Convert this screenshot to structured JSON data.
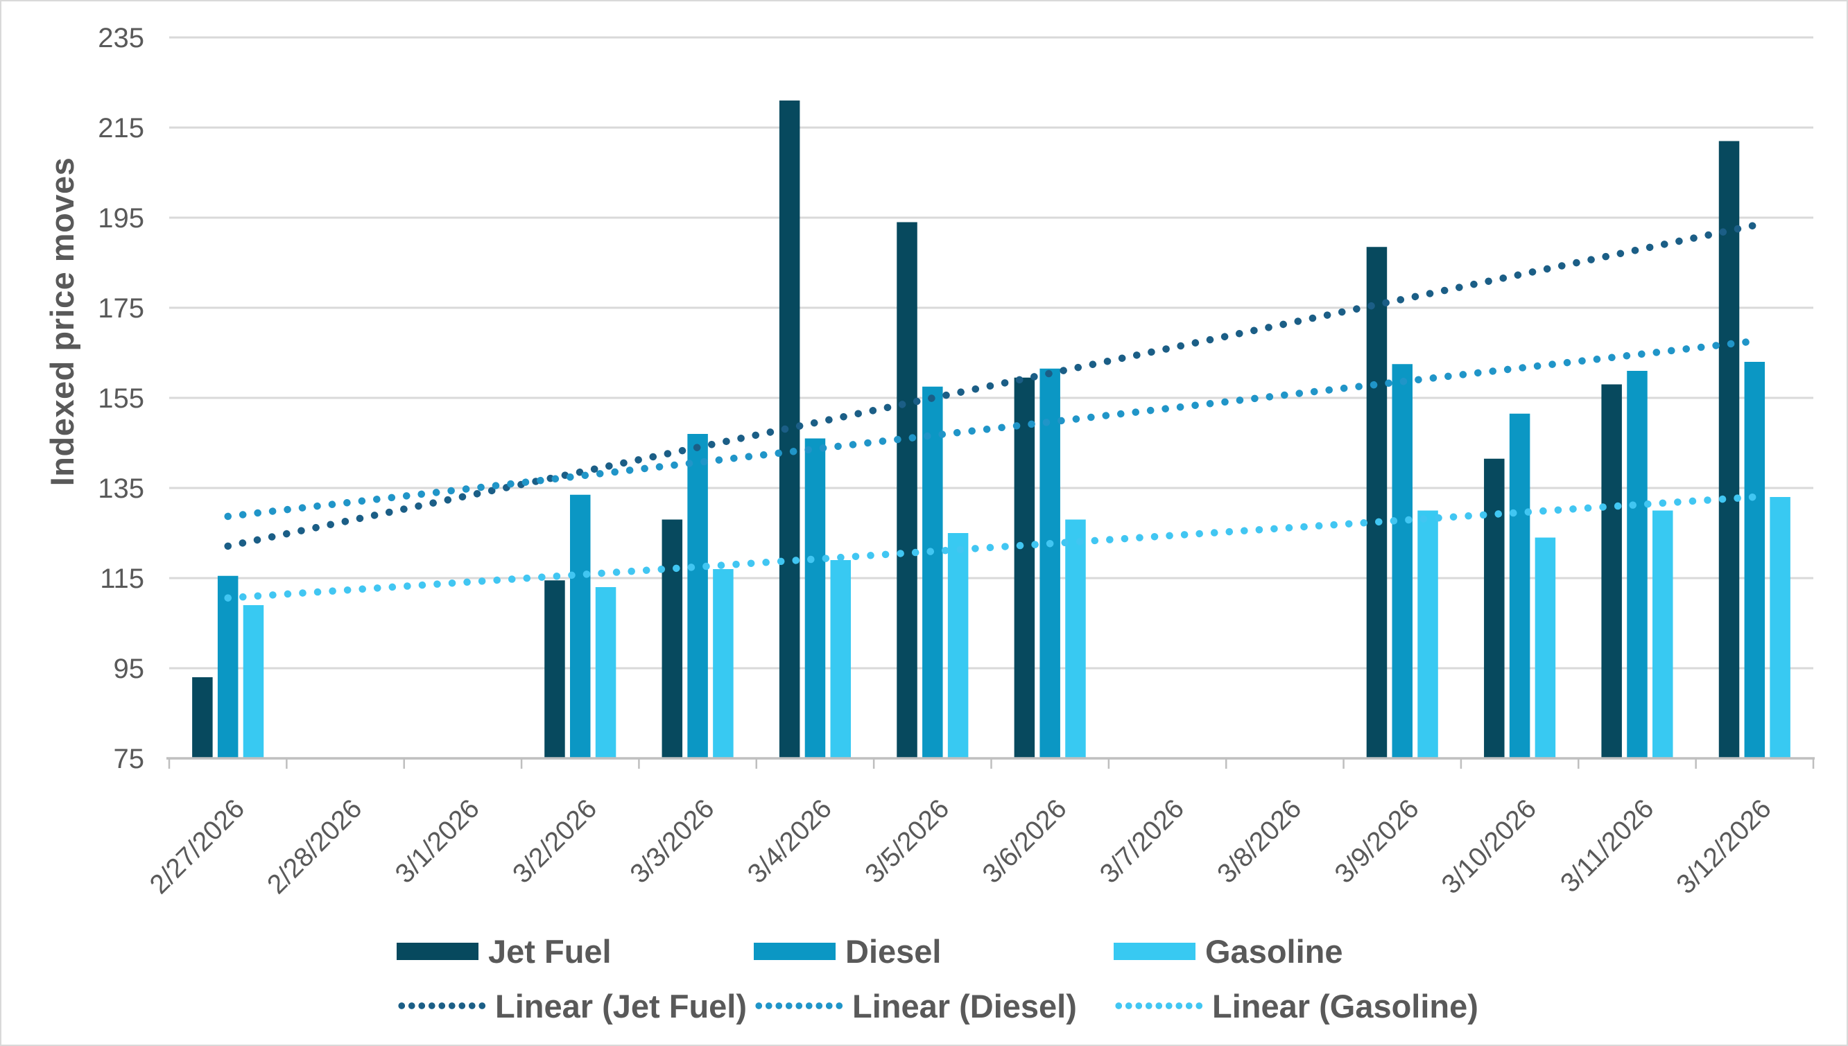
{
  "chart_data": {
    "type": "bar",
    "title": "",
    "ylabel": "Indexed price moves",
    "xlabel": "",
    "ylim": [
      75,
      235
    ],
    "ytick_step": 20,
    "ytick_labels": [
      "75",
      "95",
      "115",
      "135",
      "155",
      "175",
      "195",
      "215",
      "235"
    ],
    "grid": "horizontal",
    "legend_position": "bottom",
    "categories": [
      "2/27/2026",
      "2/28/2026",
      "3/1/2026",
      "3/2/2026",
      "3/3/2026",
      "3/4/2026",
      "3/5/2026",
      "3/6/2026",
      "3/7/2026",
      "3/8/2026",
      "3/9/2026",
      "3/10/2026",
      "3/11/2026",
      "3/12/2026"
    ],
    "series": [
      {
        "name": "Jet Fuel",
        "color": "#07495E",
        "values": [
          93,
          null,
          null,
          114.5,
          128,
          221,
          194,
          159.5,
          null,
          null,
          188.5,
          141.5,
          158,
          212
        ]
      },
      {
        "name": "Diesel",
        "color": "#0B97C4",
        "values": [
          115.5,
          null,
          null,
          133.5,
          147,
          146,
          157.5,
          161.5,
          null,
          null,
          162.5,
          151.5,
          161,
          163
        ]
      },
      {
        "name": "Gasoline",
        "color": "#38C9F2",
        "values": [
          109,
          null,
          null,
          113,
          117,
          119,
          125,
          128,
          null,
          null,
          130,
          124,
          130,
          133
        ]
      }
    ],
    "trendlines": [
      {
        "name": "Linear (Jet Fuel)",
        "color": "#1B5E86",
        "start_value": 122.1,
        "end_value": 193.3
      },
      {
        "name": "Linear (Diesel)",
        "color": "#2095C8",
        "start_value": 128.7,
        "end_value": 167.6
      },
      {
        "name": "Linear (Gasoline)",
        "color": "#41C6F2",
        "start_value": 110.6,
        "end_value": 133.0
      }
    ],
    "axis_text_color": "#595959",
    "gridline_color": "#D9D9D9",
    "axis_line_color": "#BFBFBF"
  }
}
